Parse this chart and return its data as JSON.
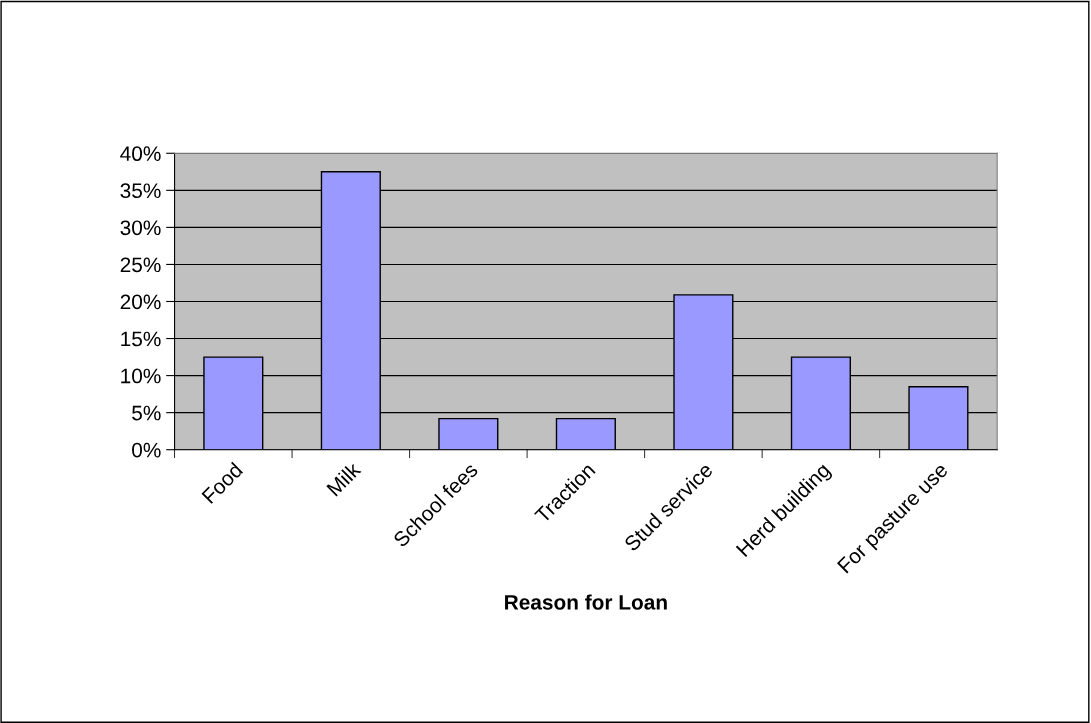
{
  "chart_data": {
    "type": "bar",
    "xlabel": "Reason for Loan",
    "categories": [
      "Food",
      "Milk",
      "School fees",
      "Traction",
      "Stud service",
      "Herd building",
      "For pasture use"
    ],
    "values": [
      12.5,
      37.5,
      4.2,
      4.2,
      20.9,
      12.5,
      8.5
    ],
    "color": "#9999ff",
    "ylim": [
      0,
      40
    ],
    "yticks": [
      {
        "value": 0,
        "label": "0%"
      },
      {
        "value": 5,
        "label": "5%"
      },
      {
        "value": 10,
        "label": "10%"
      },
      {
        "value": 15,
        "label": "15%"
      },
      {
        "value": 20,
        "label": "20%"
      },
      {
        "value": 25,
        "label": "25%"
      },
      {
        "value": 30,
        "label": "30%"
      },
      {
        "value": 35,
        "label": "35%"
      },
      {
        "value": 40,
        "label": "40%"
      }
    ],
    "grid": "y",
    "legend": false
  }
}
